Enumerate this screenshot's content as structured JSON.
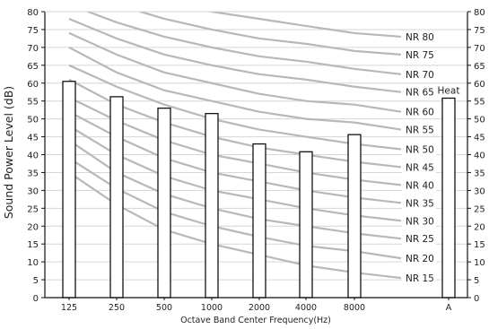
{
  "chart_data": {
    "type": "bar",
    "title": "",
    "xlabel": "Octave Band Center Frequency(Hz)",
    "ylabel": "Sound Power Level (dB)",
    "ylim": [
      0,
      80
    ],
    "y_ticks": [
      0,
      5,
      10,
      15,
      20,
      25,
      30,
      35,
      40,
      45,
      50,
      55,
      60,
      65,
      70,
      75,
      80
    ],
    "grid": "horizontal",
    "categories": [
      "125",
      "250",
      "500",
      "1000",
      "2000",
      "4000",
      "8000",
      "A"
    ],
    "series": [
      {
        "name": "",
        "values": [
          60.5,
          56.2,
          53,
          51.5,
          43,
          40.8,
          45.6,
          55.8
        ]
      }
    ],
    "annotations": [
      {
        "text": "Heat",
        "category": "A"
      }
    ],
    "nr_curves": [
      {
        "label": "NR 15",
        "values": [
          35,
          26,
          19,
          15,
          12,
          9,
          7,
          5.5
        ]
      },
      {
        "label": "NR 20",
        "values": [
          39,
          30.5,
          24,
          20,
          17,
          14.5,
          13,
          11
        ]
      },
      {
        "label": "NR 25",
        "values": [
          44,
          35,
          29,
          25,
          22,
          20,
          18,
          16.5
        ]
      },
      {
        "label": "NR 30",
        "values": [
          48,
          40,
          34,
          30,
          27.5,
          25,
          23,
          21.5
        ]
      },
      {
        "label": "NR 35",
        "values": [
          52,
          45,
          39,
          35,
          32.5,
          30,
          28,
          26.5
        ]
      },
      {
        "label": "NR 40",
        "values": [
          56,
          49.5,
          44,
          40,
          37.5,
          35,
          33,
          31.5
        ]
      },
      {
        "label": "NR 45",
        "values": [
          61,
          54,
          49,
          45,
          42,
          40,
          38,
          36.5
        ]
      },
      {
        "label": "NR 50",
        "values": [
          65,
          59,
          54,
          50,
          47,
          45,
          43,
          41.5
        ]
      },
      {
        "label": "NR 55",
        "values": [
          70,
          63,
          58,
          55,
          52,
          50,
          49,
          47
        ]
      },
      {
        "label": "NR 60",
        "values": [
          74,
          68,
          63,
          60,
          57,
          55,
          54,
          52
        ]
      },
      {
        "label": "NR 65",
        "values": [
          78,
          72.5,
          68,
          65,
          62.5,
          61,
          59,
          57.5
        ]
      },
      {
        "label": "NR 70",
        "values": [
          82,
          77,
          73,
          70,
          67.5,
          66,
          64,
          62.5
        ]
      },
      {
        "label": "NR 75",
        "values": [
          86,
          82,
          78,
          75,
          72.5,
          71,
          69,
          68
        ]
      },
      {
        "label": "NR 80",
        "values": [
          90,
          86,
          83,
          80,
          78,
          76,
          74,
          73
        ]
      }
    ],
    "colors": {
      "bar_fill": "#ffffff",
      "bar_stroke": "#111111",
      "curve": "#b8b8b8",
      "grid": "#d6d6d6",
      "axis": "#111111"
    }
  }
}
